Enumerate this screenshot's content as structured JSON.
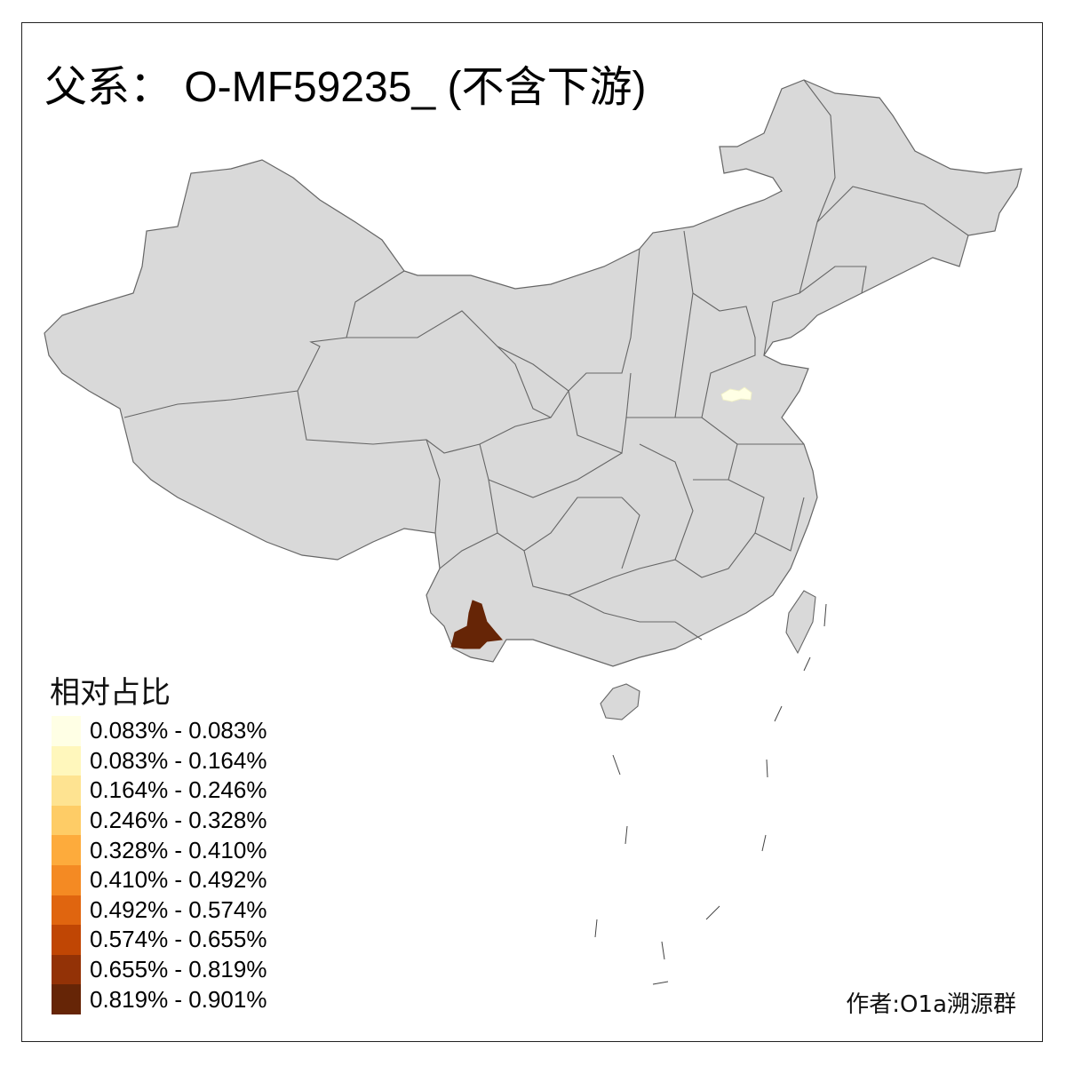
{
  "title": "父系： O-MF59235_ (不含下游)",
  "legend": {
    "title": "相对占比",
    "items": [
      {
        "label": "0.083% - 0.083%",
        "color": "#FFFFE5"
      },
      {
        "label": "0.083% - 0.164%",
        "color": "#FFF7BC"
      },
      {
        "label": "0.164% - 0.246%",
        "color": "#FEE391"
      },
      {
        "label": "0.246% - 0.328%",
        "color": "#FECC66"
      },
      {
        "label": "0.328% - 0.410%",
        "color": "#FDAB3C"
      },
      {
        "label": "0.410% - 0.492%",
        "color": "#F48A23"
      },
      {
        "label": "0.492% - 0.574%",
        "color": "#E0650F"
      },
      {
        "label": "0.574% - 0.655%",
        "color": "#C04604"
      },
      {
        "label": "0.655% - 0.819%",
        "color": "#933206"
      },
      {
        "label": "0.819% - 0.901%",
        "color": "#662506"
      }
    ]
  },
  "map": {
    "base_color": "#D9D9D9",
    "border_color": "#666666",
    "highlighted_regions": [
      {
        "area": "southern Yunnan",
        "class": "0.819% - 0.901%",
        "color": "#662506"
      },
      {
        "area": "western Shandong",
        "class": "0.083% - 0.083%",
        "color": "#FFFFE5"
      }
    ]
  },
  "credit": "作者:O1a溯源群"
}
